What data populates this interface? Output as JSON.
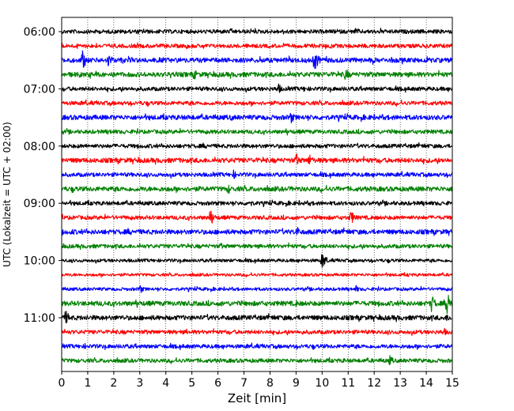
{
  "chart_data": {
    "type": "line",
    "title": "",
    "xlabel": "Zeit  [min]",
    "ylabel": "UTC (Lokalzeit = UTC + 02:00)",
    "xlim": [
      0,
      15
    ],
    "x_ticks": [
      0,
      1,
      2,
      3,
      4,
      5,
      6,
      7,
      8,
      9,
      10,
      11,
      12,
      13,
      14,
      15
    ],
    "x_tick_labels": [
      "0",
      "1",
      "2",
      "3",
      "4",
      "5",
      "6",
      "7",
      "8",
      "9",
      "10",
      "11",
      "12",
      "13",
      "14",
      "15"
    ],
    "grid": "vertical-dotted",
    "trace_interval_min": 15,
    "trace_colors": [
      "#000000",
      "#ff0000",
      "#0000ff",
      "#008000"
    ],
    "y_tick_labels": [
      {
        "label": "06:00",
        "trace": 0
      },
      {
        "label": "07:00",
        "trace": 4
      },
      {
        "label": "08:00",
        "trace": 8
      },
      {
        "label": "09:00",
        "trace": 12
      },
      {
        "label": "10:00",
        "trace": 16
      },
      {
        "label": "11:00",
        "trace": 20
      }
    ],
    "traces": [
      {
        "start": "06:00",
        "color": "#000000",
        "amp": 2.5,
        "events": [
          {
            "t": 11.3,
            "a": 6
          },
          {
            "t": 11.9,
            "a": 4
          }
        ]
      },
      {
        "start": "06:15",
        "color": "#ff0000",
        "amp": 2.5,
        "events": [
          {
            "t": 4.8,
            "a": 4
          },
          {
            "t": 6.1,
            "a": 3
          },
          {
            "t": 15.0,
            "a": 7
          }
        ]
      },
      {
        "start": "06:30",
        "color": "#0000ff",
        "amp": 3,
        "events": [
          {
            "t": 0.8,
            "a": 13
          },
          {
            "t": 1.8,
            "a": 10
          },
          {
            "t": 9.7,
            "a": 15
          }
        ]
      },
      {
        "start": "06:45",
        "color": "#008000",
        "amp": 3,
        "events": [
          {
            "t": 5.1,
            "a": 7
          },
          {
            "t": 10.9,
            "a": 9
          },
          {
            "t": 6.0,
            "a": 4
          }
        ]
      },
      {
        "start": "07:00",
        "color": "#000000",
        "amp": 2.5,
        "events": [
          {
            "t": 8.3,
            "a": 8
          },
          {
            "t": 9.3,
            "a": 4
          }
        ]
      },
      {
        "start": "07:15",
        "color": "#ff0000",
        "amp": 2.5,
        "events": [
          {
            "t": 4.8,
            "a": 3
          }
        ]
      },
      {
        "start": "07:30",
        "color": "#0000ff",
        "amp": 3,
        "events": [
          {
            "t": 8.8,
            "a": 8
          },
          {
            "t": 6.5,
            "a": 5
          }
        ]
      },
      {
        "start": "07:45",
        "color": "#008000",
        "amp": 2.5,
        "events": [
          {
            "t": 1.9,
            "a": 4
          },
          {
            "t": 12.0,
            "a": 3
          }
        ]
      },
      {
        "start": "08:00",
        "color": "#000000",
        "amp": 2.5,
        "events": [
          {
            "t": 8.3,
            "a": 3
          },
          {
            "t": 11.0,
            "a": 3
          }
        ]
      },
      {
        "start": "08:15",
        "color": "#ff0000",
        "amp": 3,
        "events": [
          {
            "t": 9.0,
            "a": 10
          },
          {
            "t": 9.5,
            "a": 9
          },
          {
            "t": 5.3,
            "a": 4
          }
        ]
      },
      {
        "start": "08:30",
        "color": "#0000ff",
        "amp": 2.5,
        "events": [
          {
            "t": 6.6,
            "a": 6
          },
          {
            "t": 12.8,
            "a": 3
          }
        ]
      },
      {
        "start": "08:45",
        "color": "#008000",
        "amp": 3,
        "events": [
          {
            "t": 6.4,
            "a": 7
          },
          {
            "t": 3.0,
            "a": 3
          }
        ]
      },
      {
        "start": "09:00",
        "color": "#000000",
        "amp": 2.5,
        "events": [
          {
            "t": 7.2,
            "a": 6
          },
          {
            "t": 9.5,
            "a": 4
          }
        ]
      },
      {
        "start": "09:15",
        "color": "#ff0000",
        "amp": 2.5,
        "events": [
          {
            "t": 5.7,
            "a": 12
          },
          {
            "t": 11.1,
            "a": 10
          }
        ]
      },
      {
        "start": "09:30",
        "color": "#0000ff",
        "amp": 3,
        "events": [
          {
            "t": 9.0,
            "a": 9
          },
          {
            "t": 0.4,
            "a": 5
          }
        ]
      },
      {
        "start": "09:45",
        "color": "#008000",
        "amp": 2.5,
        "events": [
          {
            "t": 6.1,
            "a": 5
          },
          {
            "t": 8.0,
            "a": 3
          }
        ]
      },
      {
        "start": "10:00",
        "color": "#000000",
        "amp": 2,
        "events": [
          {
            "t": 10.0,
            "a": 12
          }
        ]
      },
      {
        "start": "10:15",
        "color": "#ff0000",
        "amp": 1.8,
        "events": [
          {
            "t": 13.3,
            "a": 3
          }
        ]
      },
      {
        "start": "10:30",
        "color": "#0000ff",
        "amp": 2,
        "events": [
          {
            "t": 3.0,
            "a": 6
          },
          {
            "t": 11.3,
            "a": 5
          }
        ]
      },
      {
        "start": "10:45",
        "color": "#008000",
        "amp": 3,
        "events": [
          {
            "t": 14.2,
            "a": 12
          },
          {
            "t": 14.8,
            "a": 20
          },
          {
            "t": 9.0,
            "a": 5
          }
        ]
      },
      {
        "start": "11:00",
        "color": "#000000",
        "amp": 3,
        "events": [
          {
            "t": 0.15,
            "a": 10
          },
          {
            "t": 14.8,
            "a": 6
          },
          {
            "t": 1.5,
            "a": 4
          }
        ]
      },
      {
        "start": "11:15",
        "color": "#ff0000",
        "amp": 2.5,
        "events": [
          {
            "t": 4.8,
            "a": 4
          },
          {
            "t": 14.7,
            "a": 5
          }
        ]
      },
      {
        "start": "11:30",
        "color": "#0000ff",
        "amp": 2.5,
        "events": [
          {
            "t": 0.9,
            "a": 4
          },
          {
            "t": 10.0,
            "a": 3
          }
        ]
      },
      {
        "start": "11:45",
        "color": "#008000",
        "amp": 2.5,
        "events": [
          {
            "t": 12.6,
            "a": 7
          },
          {
            "t": 10.8,
            "a": 4
          }
        ]
      }
    ]
  }
}
